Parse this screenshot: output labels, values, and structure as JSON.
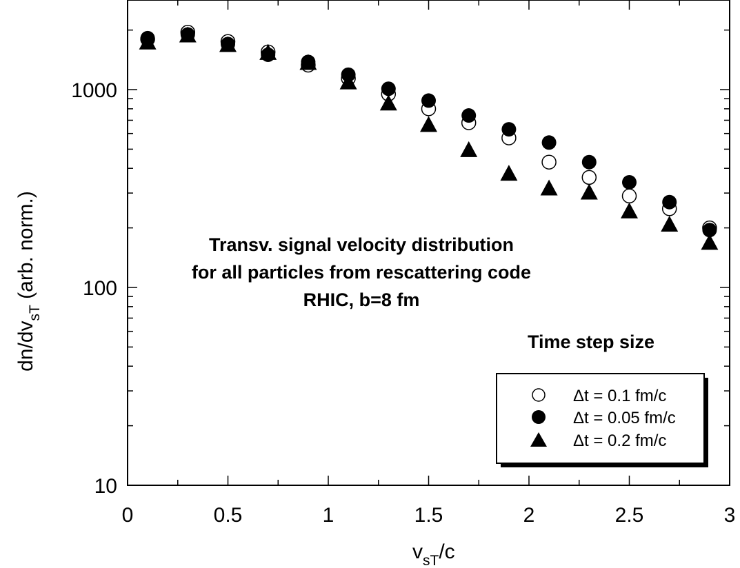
{
  "chart_data": {
    "type": "scatter",
    "xlabel": "v",
    "xlabel_sub": "sT",
    "xlabel_tail": "/c",
    "ylabel": "dn/dv",
    "ylabel_sub": "sT",
    "ylabel_tail": " (arb. norm.)",
    "xlim": [
      0,
      3
    ],
    "ylim": [
      10,
      3000
    ],
    "yscale": "log",
    "x_ticks": [
      0,
      0.5,
      1,
      1.5,
      2,
      2.5,
      3
    ],
    "x_tick_labels": [
      "0",
      "0.5",
      "1",
      "1.5",
      "2",
      "2.5",
      "3"
    ],
    "y_ticks": [
      10,
      100,
      1000
    ],
    "y_tick_labels": [
      "10",
      "100",
      "1000"
    ],
    "grid": false,
    "annotation": [
      "Transv. signal velocity distribution",
      "for all particles from rescattering code",
      "RHIC, b=8 fm"
    ],
    "legend_title": "Time step size",
    "legend_position": "bottom-right",
    "series": [
      {
        "name": "Δt = 0.1 fm/c",
        "marker": "open-circle",
        "x": [
          0.1,
          0.3,
          0.5,
          0.7,
          0.9,
          1.1,
          1.3,
          1.5,
          1.7,
          1.9,
          2.1,
          2.3,
          2.5,
          2.7,
          2.9
        ],
        "y": [
          1800,
          1950,
          1750,
          1550,
          1330,
          1140,
          950,
          800,
          680,
          570,
          430,
          360,
          290,
          250,
          200
        ]
      },
      {
        "name": "Δt = 0.05 fm/c",
        "marker": "filled-circle",
        "x": [
          0.1,
          0.3,
          0.5,
          0.7,
          0.9,
          1.1,
          1.3,
          1.5,
          1.7,
          1.9,
          2.1,
          2.3,
          2.5,
          2.7,
          2.9
        ],
        "y": [
          1820,
          1900,
          1700,
          1500,
          1380,
          1190,
          1010,
          880,
          740,
          630,
          540,
          430,
          340,
          270,
          195
        ]
      },
      {
        "name": "Δt = 0.2 fm/c",
        "marker": "filled-triangle",
        "x": [
          0.1,
          0.3,
          0.5,
          0.7,
          0.9,
          1.1,
          1.3,
          1.5,
          1.7,
          1.9,
          2.1,
          2.3,
          2.5,
          2.7,
          2.9
        ],
        "y": [
          1750,
          1900,
          1700,
          1550,
          1380,
          1100,
          860,
          670,
          500,
          380,
          320,
          305,
          245,
          210,
          170
        ]
      }
    ]
  }
}
